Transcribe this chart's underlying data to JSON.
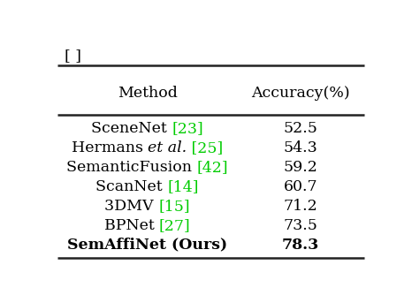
{
  "title_left": "Method",
  "title_right": "Accuracy(%)",
  "rows": [
    {
      "method_parts": [
        {
          "text": "SceneNet ",
          "color": "#000000",
          "style": "normal"
        },
        {
          "text": "[23]",
          "color": "#00cc00",
          "style": "normal"
        }
      ],
      "accuracy": "52.5",
      "bold": false
    },
    {
      "method_parts": [
        {
          "text": "Hermans ",
          "color": "#000000",
          "style": "normal"
        },
        {
          "text": "et al.",
          "color": "#000000",
          "style": "italic"
        },
        {
          "text": " [25]",
          "color": "#00cc00",
          "style": "normal"
        }
      ],
      "accuracy": "54.3",
      "bold": false
    },
    {
      "method_parts": [
        {
          "text": "SemanticFusion ",
          "color": "#000000",
          "style": "normal"
        },
        {
          "text": "[42]",
          "color": "#00cc00",
          "style": "normal"
        }
      ],
      "accuracy": "59.2",
      "bold": false
    },
    {
      "method_parts": [
        {
          "text": "ScanNet ",
          "color": "#000000",
          "style": "normal"
        },
        {
          "text": "[14]",
          "color": "#00cc00",
          "style": "normal"
        }
      ],
      "accuracy": "60.7",
      "bold": false
    },
    {
      "method_parts": [
        {
          "text": "3DMV ",
          "color": "#000000",
          "style": "normal"
        },
        {
          "text": "[15]",
          "color": "#00cc00",
          "style": "normal"
        }
      ],
      "accuracy": "71.2",
      "bold": false
    },
    {
      "method_parts": [
        {
          "text": "BPNet ",
          "color": "#000000",
          "style": "normal"
        },
        {
          "text": "[27]",
          "color": "#00cc00",
          "style": "normal"
        }
      ],
      "accuracy": "73.5",
      "bold": false
    },
    {
      "method_parts": [
        {
          "text": "SemAffiNet (Ours)",
          "color": "#000000",
          "style": "normal"
        }
      ],
      "accuracy": "78.3",
      "bold": true
    }
  ],
  "bg_color": "#ffffff",
  "top_label": "[ ]",
  "font_size": 12.5,
  "header_font_size": 12.5,
  "thick_lw": 1.8,
  "line_color": "#222222"
}
